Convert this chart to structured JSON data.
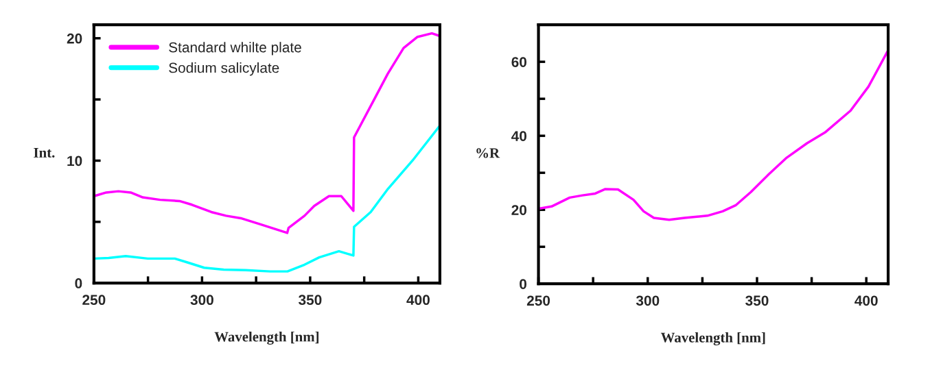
{
  "chart_data": [
    {
      "type": "line",
      "xlabel": "Wavelength [nm]",
      "ylabel": "Int.",
      "xlim": [
        250,
        410
      ],
      "ylim": [
        0,
        21.1
      ],
      "xticks": [
        250,
        {
          "value": 275,
          "label": null
        },
        300,
        {
          "value": 325,
          "label": null
        },
        350,
        {
          "value": 375,
          "label": null
        },
        400
      ],
      "yticks": [
        0,
        {
          "value": 5,
          "label": null
        },
        10,
        {
          "value": 15,
          "label": null
        },
        20
      ],
      "grid": false,
      "legend": "top left",
      "marker": "none",
      "line_style": "solid",
      "series": [
        {
          "name": "Standard whilte plate",
          "color": "#ff00ff",
          "x": [
            250,
            255.7,
            261.3,
            267,
            272.6,
            280.6,
            289.6,
            295.3,
            304.3,
            311.1,
            317.9,
            327,
            339.4,
            340,
            347.4,
            351.9,
            358.7,
            364.4,
            370,
            370.3,
            380.2,
            385.9,
            393.2,
            399.5,
            406.3,
            409.7
          ],
          "values": [
            7.1,
            7.4,
            7.5,
            7.4,
            7.0,
            6.8,
            6.7,
            6.4,
            5.8,
            5.5,
            5.3,
            4.8,
            4.1,
            4.5,
            5.5,
            6.3,
            7.1,
            7.1,
            5.9,
            11.9,
            15.2,
            17.1,
            19.2,
            20.1,
            20.4,
            20.2
          ]
        },
        {
          "name": "Sodium salicylate",
          "color": "#00ffff",
          "x": [
            250,
            256.8,
            264.7,
            274.9,
            287.4,
            293,
            301,
            310,
            320.2,
            331.5,
            339.5,
            347.4,
            354.2,
            363.3,
            370,
            370.3,
            378,
            386,
            397.3,
            409.7
          ],
          "values": [
            2.0,
            2.05,
            2.2,
            2.0,
            2.0,
            1.7,
            1.25,
            1.1,
            1.05,
            0.95,
            0.95,
            1.5,
            2.1,
            2.6,
            2.25,
            4.6,
            5.8,
            7.7,
            10.0,
            12.8
          ]
        }
      ]
    },
    {
      "type": "line",
      "xlabel": "Wavelength [nm]",
      "ylabel": "%R",
      "xlim": [
        250,
        410
      ],
      "ylim": [
        0,
        70
      ],
      "xticks": [
        250,
        {
          "value": 275,
          "label": null
        },
        300,
        {
          "value": 325,
          "label": null
        },
        350,
        {
          "value": 375,
          "label": null
        },
        400
      ],
      "yticks": [
        0,
        {
          "value": 10,
          "label": null
        },
        20,
        {
          "value": 30,
          "label": null
        },
        40,
        {
          "value": 50,
          "label": null
        },
        60
      ],
      "grid": false,
      "legend": false,
      "marker": "none",
      "line_style": "solid",
      "series": [
        {
          "color": "#ff00ff",
          "x": [
            250.2,
            256,
            264.3,
            270.1,
            276,
            280.6,
            286.4,
            293.5,
            298.1,
            302.8,
            309.8,
            316.8,
            327.3,
            334.3,
            340.2,
            347.2,
            355.4,
            363.6,
            372.9,
            381.1,
            392.8,
            401,
            409.7
          ],
          "values": [
            20.3,
            20.9,
            23.3,
            23.9,
            24.4,
            25.6,
            25.5,
            22.7,
            19.6,
            17.8,
            17.3,
            17.8,
            18.4,
            19.6,
            21.2,
            24.8,
            29.6,
            34.1,
            38.0,
            40.9,
            46.8,
            53.3,
            62.8
          ]
        }
      ]
    }
  ]
}
